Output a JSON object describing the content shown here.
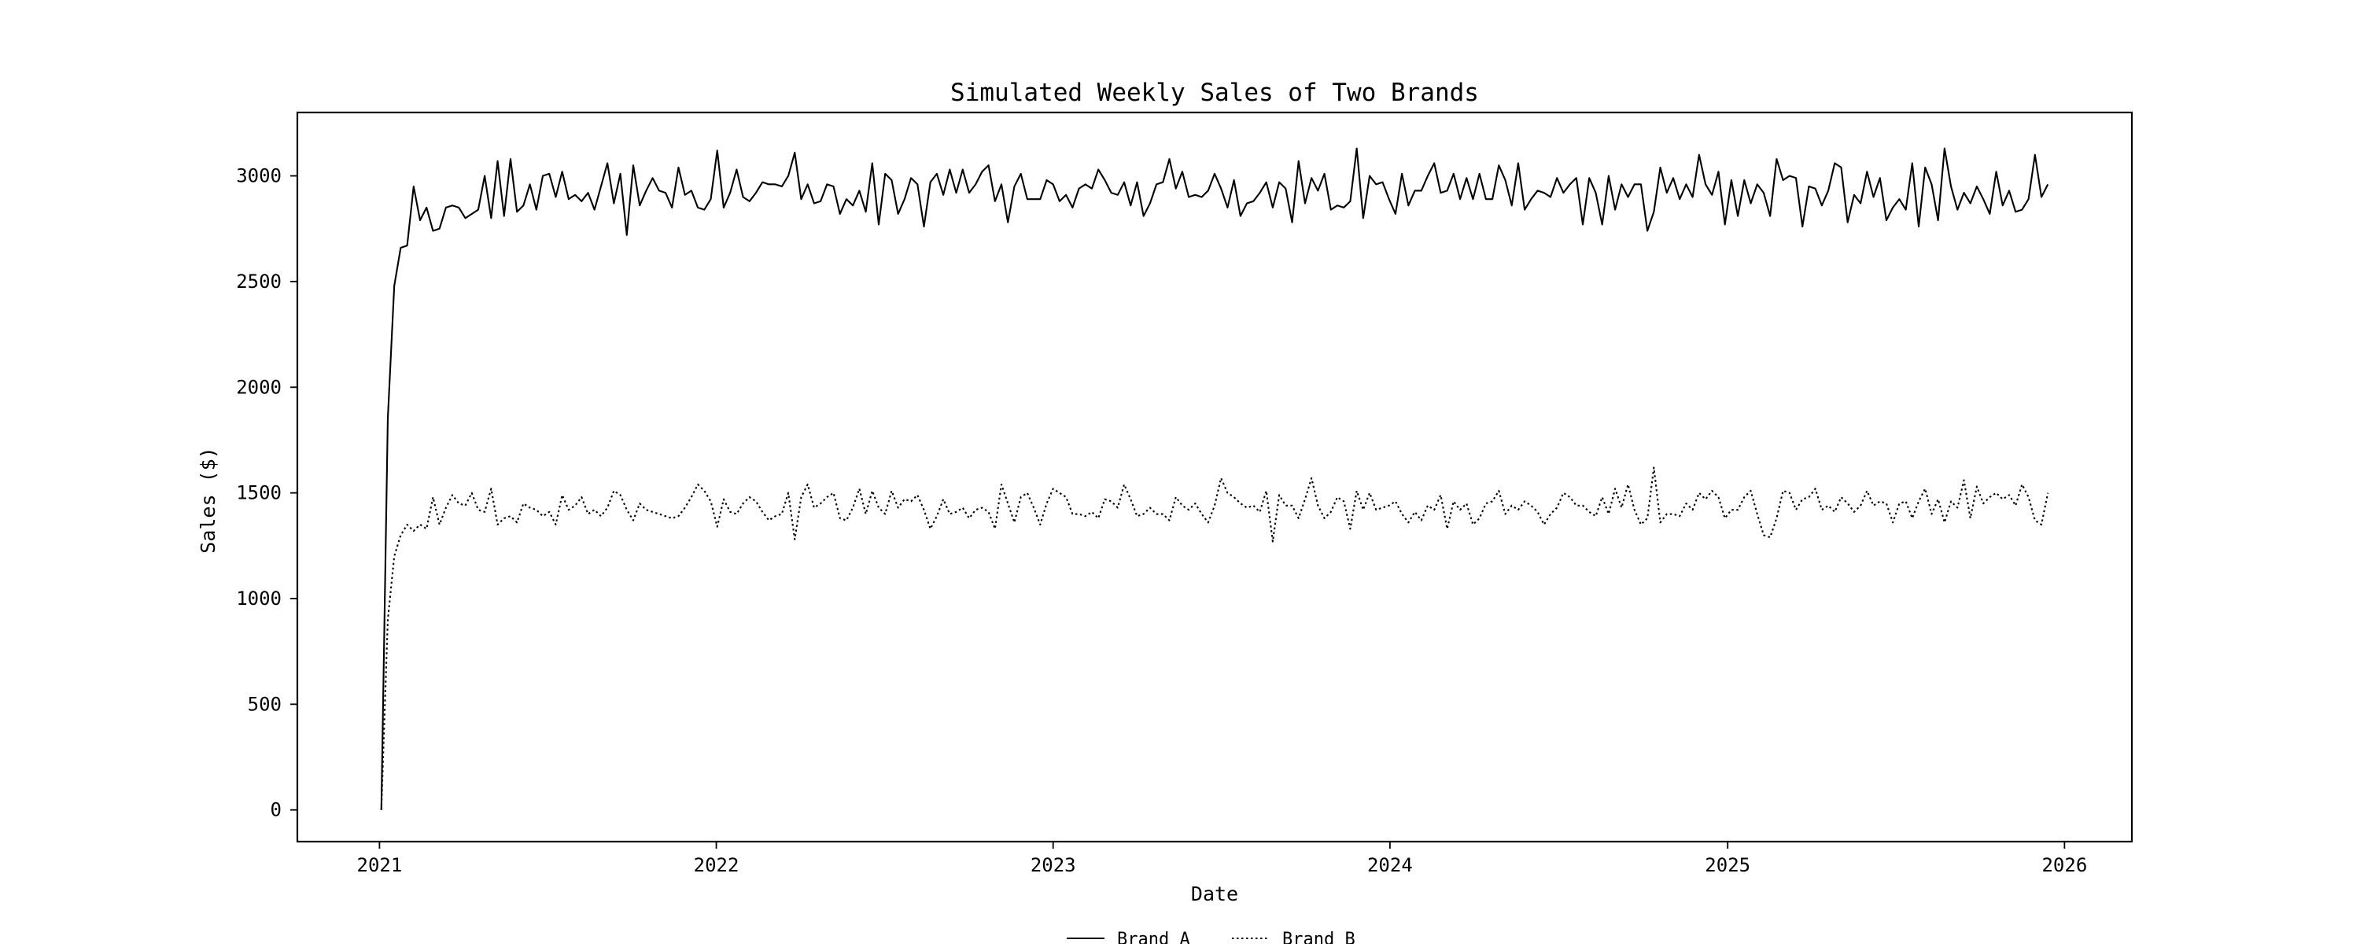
{
  "chart_data": {
    "type": "line",
    "title": "Simulated Weekly Sales of Two Brands",
    "xlabel": "Date",
    "ylabel": "Sales ($)",
    "x_axis": "date",
    "xlim": [
      "2020-10-04",
      "2026-03-15"
    ],
    "ylim": [
      -150,
      3300
    ],
    "xticks": [
      {
        "date": "2021-01-01",
        "label": "2021"
      },
      {
        "date": "2022-01-01",
        "label": "2022"
      },
      {
        "date": "2023-01-01",
        "label": "2023"
      },
      {
        "date": "2024-01-01",
        "label": "2024"
      },
      {
        "date": "2025-01-01",
        "label": "2025"
      },
      {
        "date": "2026-01-01",
        "label": "2026"
      }
    ],
    "yticks": [
      {
        "value": 0,
        "label": "0"
      },
      {
        "value": 500,
        "label": "500"
      },
      {
        "value": 1000,
        "label": "1000"
      },
      {
        "value": 1500,
        "label": "1500"
      },
      {
        "value": 2000,
        "label": "2000"
      },
      {
        "value": 2500,
        "label": "2500"
      },
      {
        "value": 3000,
        "label": "3000"
      }
    ],
    "grid": false,
    "legend_position": "bottom-center",
    "sampling": {
      "start": "2021-01-03",
      "interval_days": 7
    },
    "series": [
      {
        "name": "Brand A",
        "style": "solid",
        "color": "#000000",
        "values": [
          0,
          1850,
          2480,
          2660,
          2670,
          2950,
          2790,
          2850,
          2740,
          2750,
          2850,
          2860,
          2850,
          2800,
          2820,
          2840,
          3000,
          2800,
          3070,
          2810,
          3080,
          2830,
          2860,
          2960,
          2840,
          3000,
          3010,
          2900,
          3020,
          2890,
          2910,
          2880,
          2920,
          2840,
          2950,
          3060,
          2870,
          3010,
          2720,
          3050,
          2860,
          2930,
          2990,
          2930,
          2920,
          2850,
          3040,
          2910,
          2930,
          2850,
          2840,
          2890,
          3120,
          2850,
          2920,
          3030,
          2900,
          2880,
          2920,
          2970,
          2960,
          2960,
          2950,
          3000,
          3110,
          2890,
          2960,
          2870,
          2880,
          2960,
          2950,
          2820,
          2890,
          2860,
          2930,
          2830,
          3060,
          2770,
          3010,
          2980,
          2820,
          2890,
          2990,
          2960,
          2760,
          2970,
          3010,
          2910,
          3030,
          2920,
          3030,
          2920,
          2960,
          3020,
          3050,
          2880,
          2960,
          2780,
          2950,
          3010,
          2890,
          2890,
          2890,
          2980,
          2960,
          2880,
          2910,
          2850,
          2940,
          2960,
          2940,
          3030,
          2980,
          2920,
          2910,
          2970,
          2860,
          2970,
          2810,
          2870,
          2960,
          2970,
          3080,
          2940,
          3020,
          2900,
          2910,
          2900,
          2930,
          3010,
          2940,
          2850,
          2980,
          2810,
          2870,
          2880,
          2920,
          2970,
          2850,
          2970,
          2940,
          2780,
          3070,
          2870,
          2990,
          2930,
          3010,
          2840,
          2860,
          2850,
          2880,
          3130,
          2800,
          3000,
          2960,
          2970,
          2890,
          2820,
          3010,
          2860,
          2930,
          2930,
          3000,
          3060,
          2920,
          2930,
          3010,
          2890,
          2990,
          2890,
          3010,
          2890,
          2890,
          3050,
          2980,
          2860,
          3060,
          2840,
          2890,
          2930,
          2920,
          2900,
          2990,
          2920,
          2960,
          2990,
          2770,
          2990,
          2920,
          2770,
          3000,
          2840,
          2960,
          2900,
          2960,
          2960,
          2740,
          2830,
          3040,
          2920,
          2990,
          2890,
          2960,
          2900,
          3100,
          2960,
          2910,
          3020,
          2770,
          2980,
          2810,
          2980,
          2870,
          2960,
          2920,
          2810,
          3080,
          2980,
          3000,
          2990,
          2760,
          2950,
          2940,
          2860,
          2930,
          3060,
          3040,
          2780,
          2910,
          2870,
          3020,
          2900,
          2990,
          2790,
          2850,
          2890,
          2840,
          3060,
          2760,
          3040,
          2960,
          2790,
          3130,
          2950,
          2840,
          2920,
          2870,
          2950,
          2890,
          2820,
          3020,
          2860,
          2930,
          2830,
          2840,
          2890,
          3100,
          2900,
          2960
        ]
      },
      {
        "name": "Brand B",
        "style": "dotted",
        "color": "#000000",
        "values": [
          0,
          900,
          1200,
          1300,
          1350,
          1320,
          1350,
          1330,
          1480,
          1350,
          1430,
          1490,
          1450,
          1440,
          1500,
          1420,
          1410,
          1520,
          1350,
          1380,
          1390,
          1360,
          1450,
          1430,
          1420,
          1390,
          1410,
          1350,
          1490,
          1420,
          1440,
          1480,
          1400,
          1420,
          1390,
          1430,
          1510,
          1490,
          1420,
          1370,
          1450,
          1420,
          1410,
          1400,
          1390,
          1380,
          1390,
          1430,
          1480,
          1540,
          1510,
          1460,
          1340,
          1470,
          1410,
          1400,
          1450,
          1480,
          1460,
          1410,
          1370,
          1390,
          1400,
          1500,
          1280,
          1480,
          1540,
          1430,
          1450,
          1480,
          1500,
          1380,
          1370,
          1430,
          1520,
          1400,
          1510,
          1430,
          1400,
          1510,
          1430,
          1470,
          1460,
          1490,
          1420,
          1330,
          1390,
          1470,
          1400,
          1410,
          1430,
          1380,
          1420,
          1430,
          1410,
          1330,
          1540,
          1450,
          1360,
          1480,
          1500,
          1430,
          1350,
          1450,
          1520,
          1500,
          1480,
          1400,
          1400,
          1390,
          1410,
          1380,
          1470,
          1460,
          1430,
          1540,
          1470,
          1390,
          1400,
          1430,
          1400,
          1400,
          1370,
          1480,
          1440,
          1420,
          1450,
          1400,
          1360,
          1440,
          1570,
          1500,
          1480,
          1450,
          1430,
          1440,
          1410,
          1510,
          1270,
          1490,
          1440,
          1440,
          1380,
          1470,
          1570,
          1440,
          1380,
          1410,
          1480,
          1460,
          1330,
          1510,
          1420,
          1500,
          1420,
          1430,
          1440,
          1460,
          1400,
          1360,
          1410,
          1370,
          1440,
          1420,
          1490,
          1330,
          1460,
          1420,
          1450,
          1350,
          1380,
          1450,
          1460,
          1510,
          1400,
          1440,
          1420,
          1460,
          1440,
          1410,
          1350,
          1400,
          1430,
          1500,
          1480,
          1440,
          1440,
          1410,
          1390,
          1480,
          1400,
          1520,
          1430,
          1540,
          1420,
          1350,
          1380,
          1620,
          1360,
          1400,
          1400,
          1390,
          1450,
          1420,
          1500,
          1470,
          1510,
          1480,
          1380,
          1420,
          1420,
          1480,
          1510,
          1400,
          1300,
          1290,
          1380,
          1510,
          1500,
          1420,
          1470,
          1480,
          1520,
          1420,
          1440,
          1410,
          1480,
          1450,
          1410,
          1440,
          1510,
          1440,
          1460,
          1450,
          1360,
          1450,
          1460,
          1380,
          1460,
          1520,
          1400,
          1470,
          1360,
          1460,
          1430,
          1560,
          1380,
          1530,
          1450,
          1480,
          1500,
          1470,
          1490,
          1440,
          1540,
          1480,
          1370,
          1350,
          1500
        ]
      }
    ]
  }
}
